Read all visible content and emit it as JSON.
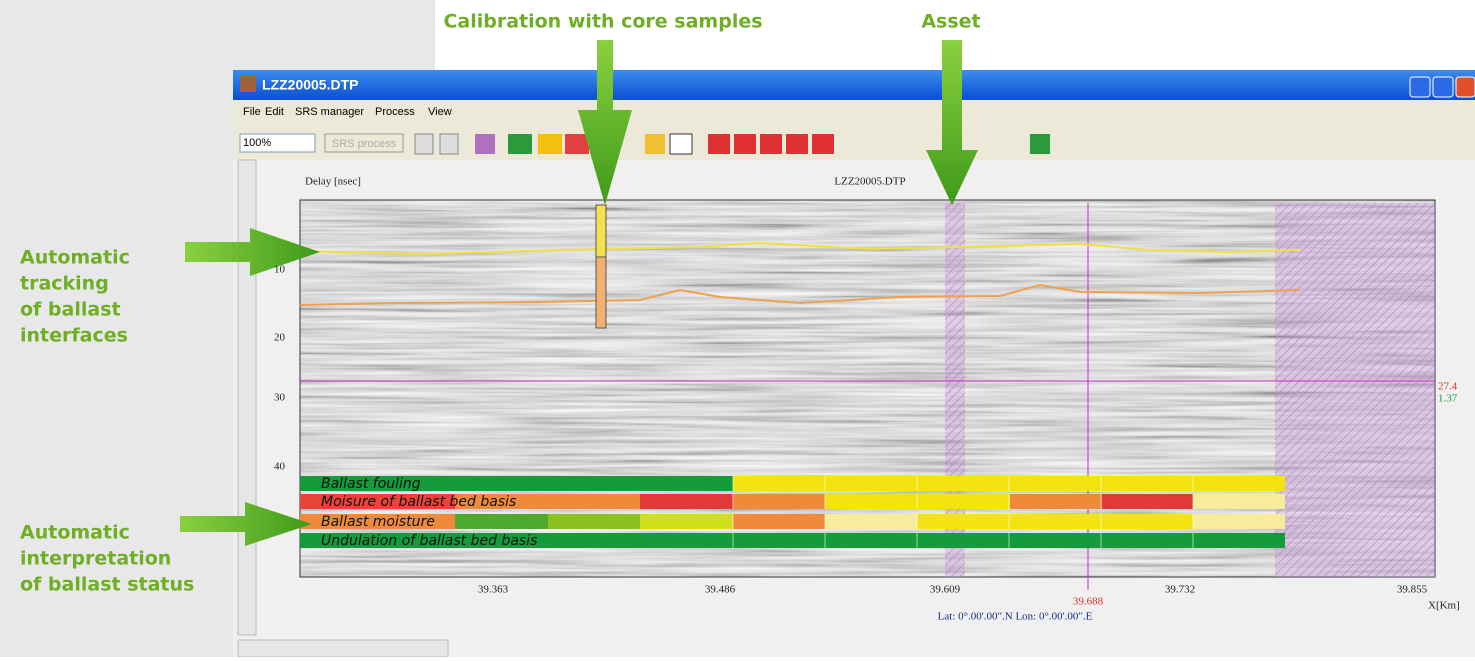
{
  "callouts": {
    "calibration": "Calibration with core samples",
    "asset": "Asset",
    "tracking": [
      "Automatic",
      "tracking",
      "of ballast",
      "interfaces"
    ],
    "interpretation": [
      "Automatic",
      "interpretation",
      "of ballast status"
    ]
  },
  "window": {
    "title": "LZZ20005.DTP",
    "menu": [
      "File",
      "Edit",
      "SRS manager",
      "Process",
      "View"
    ],
    "zoom": "100%",
    "process_button": "SRS process"
  },
  "plot": {
    "y_label": "Delay [nsec]",
    "title": "LZZ20005.DTP",
    "y_ticks": [
      "10",
      "20",
      "30",
      "40"
    ],
    "x_ticks": [
      "39.363",
      "39.486",
      "39.609",
      "39.732",
      "39.855"
    ],
    "x_label": "X[Km]",
    "cursor_x": "39.688",
    "cursor_y": "27.4",
    "cursor_y2": "1.37",
    "coords": "Lat: 0°.00'.00\".N   Lon: 0°.00'.00\".E",
    "status_rows": [
      {
        "label": "Ballast fouling",
        "colors": [
          "#159a3c",
          "#f3e310"
        ]
      },
      {
        "label": "Moisure of ballast bed basis",
        "colors": [
          "#e8453a",
          "#f08a3a",
          "#e23a3a",
          "#f08a3a",
          "#f3e310",
          "#f08a3a",
          "#e23a3a",
          "#f6ec9a"
        ]
      },
      {
        "label": "Ballast moisture",
        "colors": [
          "#f08a3a",
          "#4daa2f",
          "#8cc21f",
          "#cfe01a",
          "#f08a3a",
          "#f6ec9a",
          "#f3e310",
          "#f6ec9a"
        ]
      },
      {
        "label": "Undulation of ballast bed basis",
        "colors": [
          "#159a3c"
        ]
      }
    ]
  }
}
